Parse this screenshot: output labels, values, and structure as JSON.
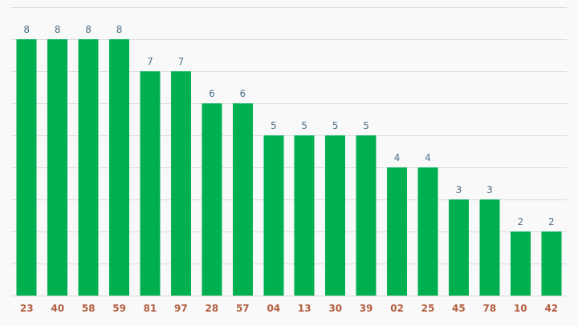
{
  "chart_data": {
    "type": "bar",
    "categories": [
      "23",
      "40",
      "58",
      "59",
      "81",
      "97",
      "28",
      "57",
      "04",
      "13",
      "30",
      "39",
      "02",
      "25",
      "45",
      "78",
      "10",
      "42"
    ],
    "values": [
      8,
      8,
      8,
      8,
      7,
      7,
      6,
      6,
      5,
      5,
      5,
      5,
      4,
      4,
      3,
      3,
      2,
      2
    ],
    "title": "",
    "xlabel": "",
    "ylabel": "",
    "ylim": [
      0,
      9
    ],
    "grid": true,
    "colors": {
      "bar": "#00b050",
      "value_label": "#4f6f86",
      "tick_label": "#b25e3f",
      "grid": "#d9d9dc",
      "background": "#f9f9fa"
    }
  }
}
